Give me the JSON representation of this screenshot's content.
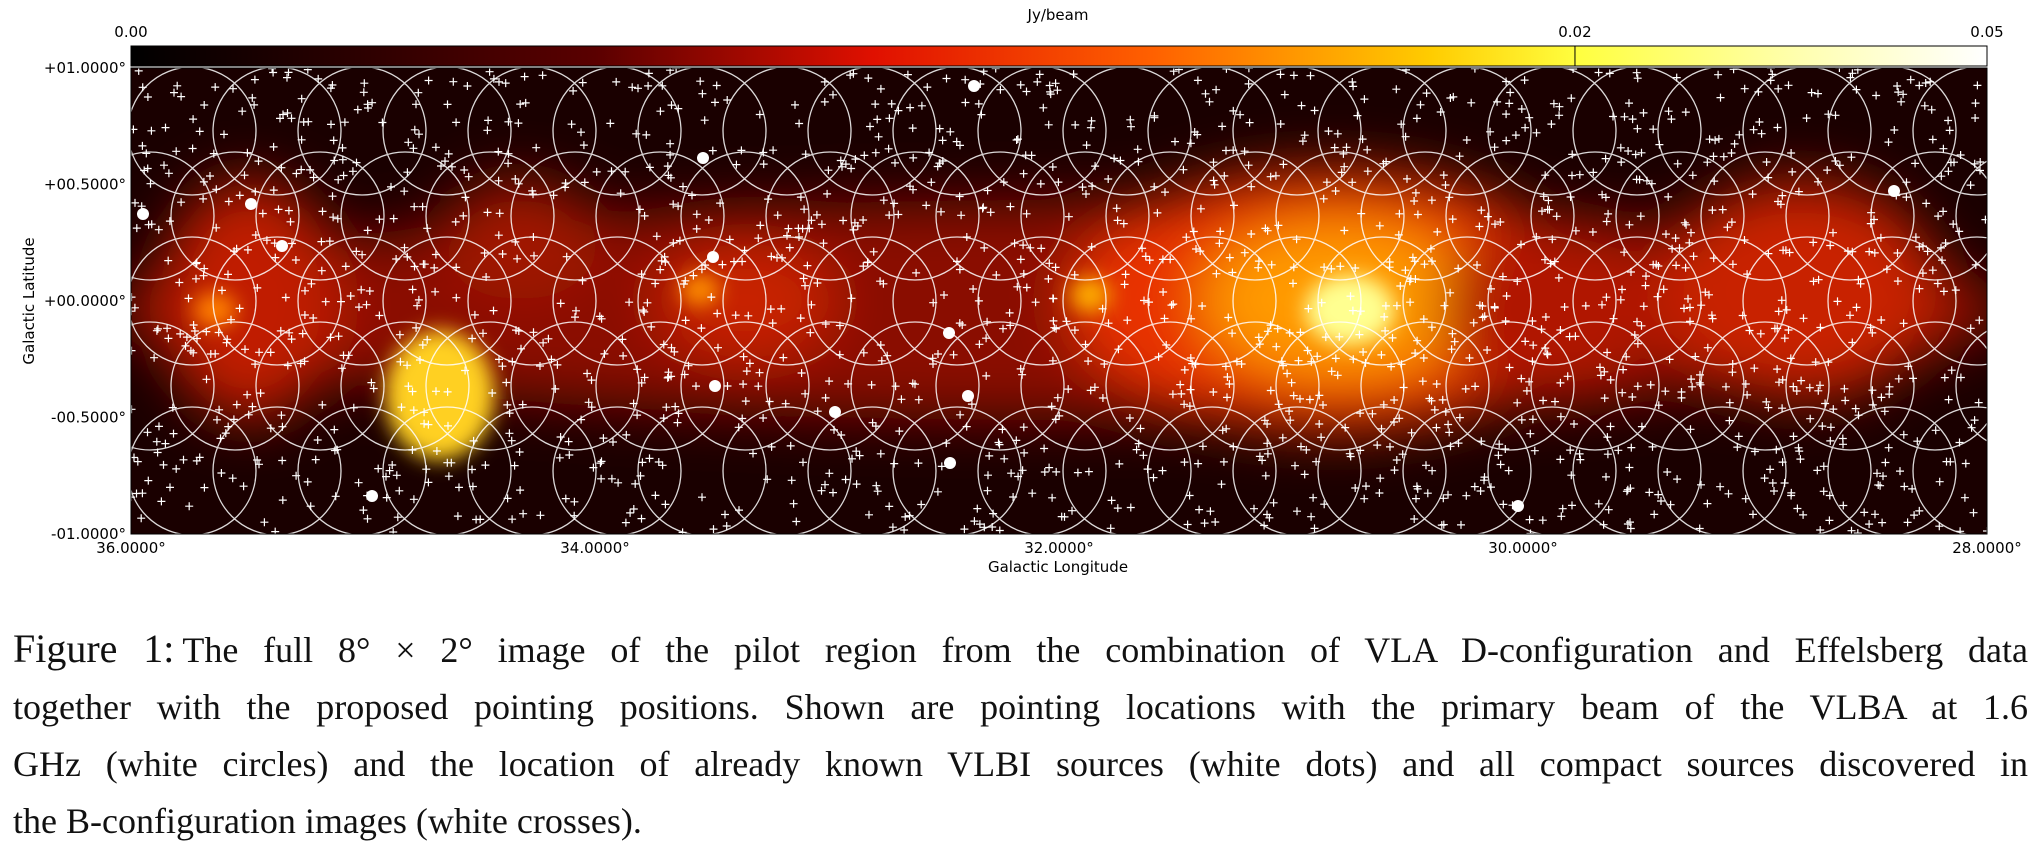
{
  "figure": {
    "colorbar": {
      "label": "Jy/beam",
      "ticks": [
        "0.00",
        "0.02",
        "0.05"
      ]
    },
    "y_axis": {
      "label": "Galactic Latitude",
      "ticks": [
        "+01.0000°",
        "+00.5000°",
        "+00.0000°",
        "-00.5000°",
        "-01.0000°"
      ]
    },
    "x_axis": {
      "label": "Galactic Longitude",
      "ticks": [
        "36.0000°",
        "34.0000°",
        "32.0000°",
        "30.0000°",
        "28.0000°"
      ]
    }
  },
  "caption": {
    "label": "Figure 1:",
    "lines": [
      "The full 8° × 2° image of the pilot region from the combination of VLA D-configuration and Effelsberg data",
      "together with the proposed pointing positions. Shown are pointing locations with the primary beam of the VLBA at 1.6",
      "GHz (white circles) and the location of already known VLBI sources (white dots) and all compact sources discovered in",
      "the B-configuration images (white crosses)."
    ]
  }
}
